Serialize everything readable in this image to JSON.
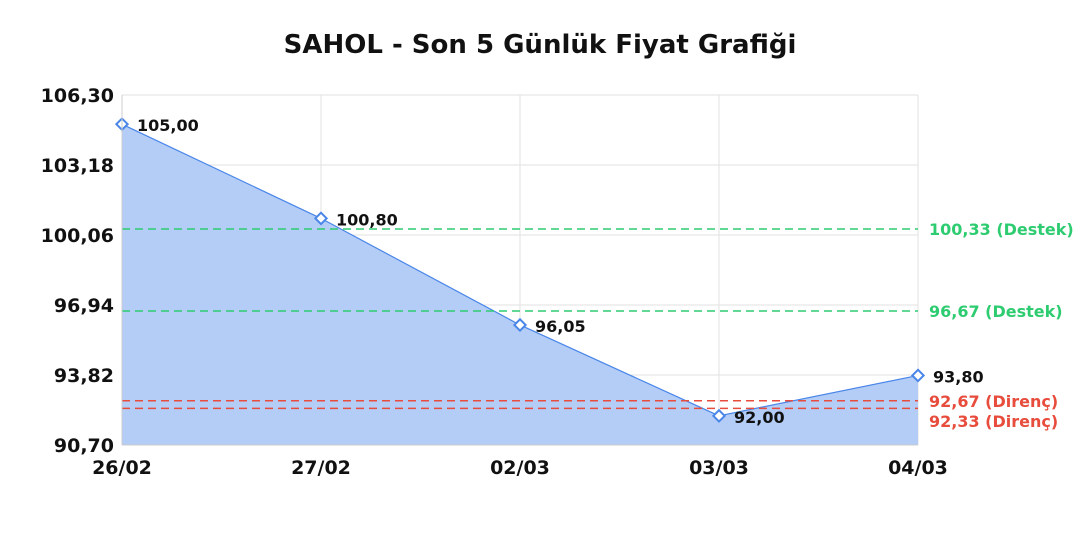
{
  "chart_data": {
    "type": "area",
    "title": "SAHOL - Son 5 Günlük Fiyat Grafiği",
    "categories": [
      "26/02",
      "27/02",
      "02/03",
      "03/03",
      "04/03"
    ],
    "values": [
      105.0,
      100.8,
      96.05,
      92.0,
      93.8
    ],
    "value_labels": [
      "105,00",
      "100,80",
      "96,05",
      "92,00",
      "93,80"
    ],
    "ylim": [
      90.7,
      106.3
    ],
    "yticks": [
      90.7,
      93.82,
      96.94,
      100.06,
      103.18,
      106.3
    ],
    "ytick_labels": [
      "90,70",
      "93,82",
      "96,94",
      "100,06",
      "103,18",
      "106,30"
    ],
    "grid": true,
    "reference_lines": [
      {
        "value": 100.33,
        "label": "100,33 (Destek)",
        "color": "#2ecc71"
      },
      {
        "value": 96.67,
        "label": "96,67 (Destek)",
        "color": "#2ecc71"
      },
      {
        "value": 92.67,
        "label": "92,67 (Direnç)",
        "color": "#e74c3c"
      },
      {
        "value": 92.33,
        "label": "92,33 (Direnç)",
        "color": "#e74c3c"
      }
    ],
    "colors": {
      "line": "#4a86e8",
      "fill": "#b3cdf7"
    }
  }
}
